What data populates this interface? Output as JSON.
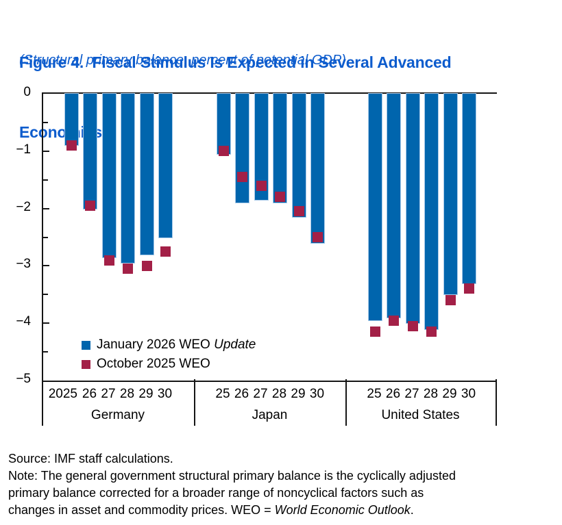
{
  "figure": {
    "title_line1": "Figure 4.  Fiscal Stimulus Is Expected in Several Advanced",
    "title_line2": "Economies",
    "subtitle": "(Structural primary balance, percent of potential GDP)",
    "title_color": "#0D5CCD"
  },
  "legend": {
    "items": [
      {
        "label_regular": "January 2026 WEO ",
        "label_italic": "Update",
        "color": "#0065AD"
      },
      {
        "label_regular": "October 2025 WEO",
        "label_italic": "",
        "color": "#A32047"
      }
    ]
  },
  "chart_data": {
    "type": "bar",
    "title": "Figure 4. Fiscal Stimulus Is Expected in Several Advanced Economies",
    "subtitle": "(Structural primary balance, percent of potential GDP)",
    "ylabel": "Structural primary balance, percent of potential GDP",
    "ylim": [
      -5,
      0
    ],
    "yticks": [
      0,
      -1,
      -2,
      -3,
      -4,
      -5
    ],
    "ytick_labels": [
      "0",
      "−1",
      "−2",
      "−3",
      "−4",
      "−5"
    ],
    "minor_tick_step": 0.5,
    "grid": false,
    "legend_position": "inside-bottom-left",
    "series": [
      {
        "name": "January 2026 WEO Update",
        "style": "bar",
        "color": "#0065AD"
      },
      {
        "name": "October 2025 WEO",
        "style": "square-marker",
        "color": "#A32047"
      }
    ],
    "groups": [
      {
        "label": "Germany",
        "year_labels": [
          "2025",
          "26",
          "27",
          "28",
          "29",
          "30"
        ],
        "january_2026_weo_update": [
          -0.9,
          -2.0,
          -2.85,
          -2.95,
          -2.8,
          -2.5
        ],
        "october_2025_weo": [
          -0.9,
          -1.95,
          -2.9,
          -3.05,
          -3.0,
          -2.75
        ]
      },
      {
        "label": "Japan",
        "year_labels": [
          "25",
          "26",
          "27",
          "28",
          "29",
          "30"
        ],
        "january_2026_weo_update": [
          -1.05,
          -1.9,
          -1.85,
          -1.9,
          -2.15,
          -2.6
        ],
        "october_2025_weo": [
          -1.0,
          -1.45,
          -1.6,
          -1.8,
          -2.05,
          -2.5
        ]
      },
      {
        "label": "United States",
        "year_labels": [
          "25",
          "26",
          "27",
          "28",
          "29",
          "30"
        ],
        "january_2026_weo_update": [
          -3.95,
          -3.9,
          -4.0,
          -4.1,
          -3.5,
          -3.3
        ],
        "october_2025_weo": [
          -4.15,
          -3.95,
          -4.05,
          -4.15,
          -3.6,
          -3.4
        ]
      }
    ]
  },
  "notes": {
    "source": "Source: IMF staff calculations.",
    "note_line1": "Note: The general government structural primary balance is the cyclically adjusted",
    "note_line2": "primary balance corrected for a broader range of noncyclical factors such as",
    "note_line3_regular": "changes in asset and commodity prices. WEO = ",
    "note_line3_italic": "World Economic Outlook",
    "note_line3_end": "."
  }
}
